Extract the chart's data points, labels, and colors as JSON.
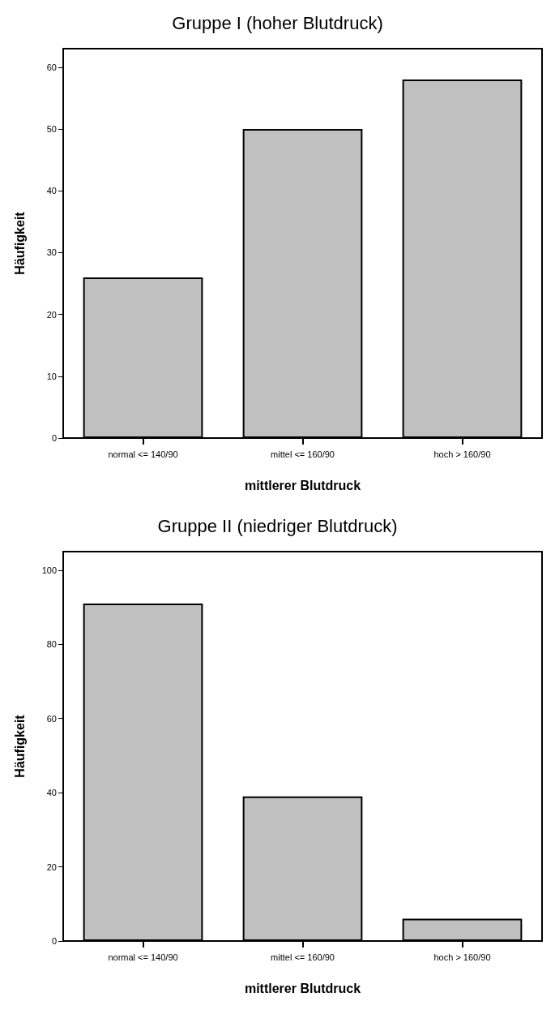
{
  "chart_data": [
    {
      "type": "bar",
      "title": "Gruppe I (hoher Blutdruck)",
      "xlabel": "mittlerer Blutdruck",
      "ylabel": "Häufigkeit",
      "categories": [
        "normal <= 140/90",
        "mittel <= 160/90",
        "hoch > 160/90"
      ],
      "values": [
        26,
        50,
        58
      ],
      "color": "#c0c0c0",
      "ylim": [
        0,
        63
      ],
      "yticks": [
        0,
        10,
        20,
        30,
        40,
        50,
        60
      ],
      "grid": false
    },
    {
      "type": "bar",
      "title": "Gruppe II (niedriger Blutdruck)",
      "xlabel": "mittlerer Blutdruck",
      "ylabel": "Häufigkeit",
      "categories": [
        "normal <= 140/90",
        "mittel <= 160/90",
        "hoch > 160/90"
      ],
      "values": [
        91,
        39,
        6
      ],
      "color": "#c0c0c0",
      "ylim": [
        0,
        105
      ],
      "yticks": [
        0,
        20,
        40,
        60,
        80,
        100
      ],
      "grid": false
    }
  ]
}
